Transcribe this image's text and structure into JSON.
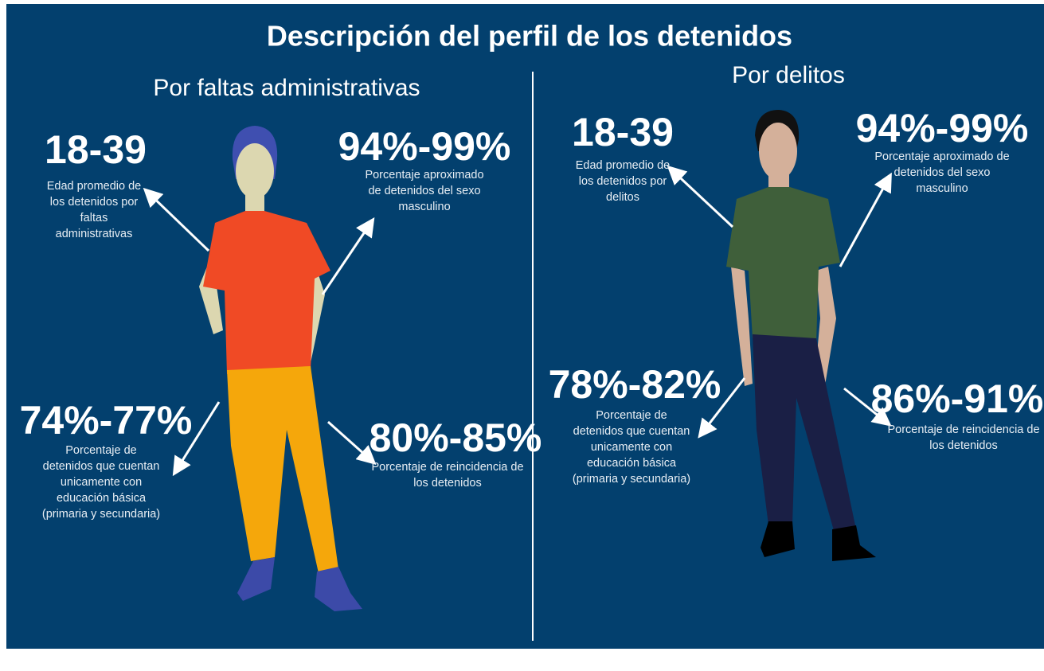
{
  "title": "Descripción del perfil de los detenidos",
  "panels": [
    {
      "heading": "Por faltas administrativas",
      "stats": [
        {
          "value": "18-39",
          "description": [
            "Edad promedio de",
            "los detenidos por",
            "faltas",
            "administrativas"
          ]
        },
        {
          "value": "94%-99%",
          "description": [
            "Porcentaje aproximado",
            "de detenidos del sexo",
            "masculino"
          ]
        },
        {
          "value": "74%-77%",
          "description": [
            "Porcentaje de",
            "detenidos que cuentan",
            "unicamente con",
            "educación básica",
            "(primaria y secundaria)"
          ]
        },
        {
          "value": "80%-85%",
          "description": [
            "Porcentaje de reincidencia de",
            "los detenidos"
          ]
        }
      ]
    },
    {
      "heading": "Por delitos",
      "stats": [
        {
          "value": "18-39",
          "description": [
            "Edad promedio de",
            "los detenidos por",
            "delitos"
          ]
        },
        {
          "value": "94%-99%",
          "description": [
            "Porcentaje aproximado de",
            "detenidos del sexo",
            "masculino"
          ]
        },
        {
          "value": "78%-82%",
          "description": [
            "Porcentaje de",
            "detenidos que cuentan",
            "unicamente con",
            "educación básica",
            "(primaria y secundaria)"
          ]
        },
        {
          "value": "86%-91%",
          "description": [
            "Porcentaje de reincidencia de",
            "los detenidos"
          ]
        }
      ]
    }
  ]
}
